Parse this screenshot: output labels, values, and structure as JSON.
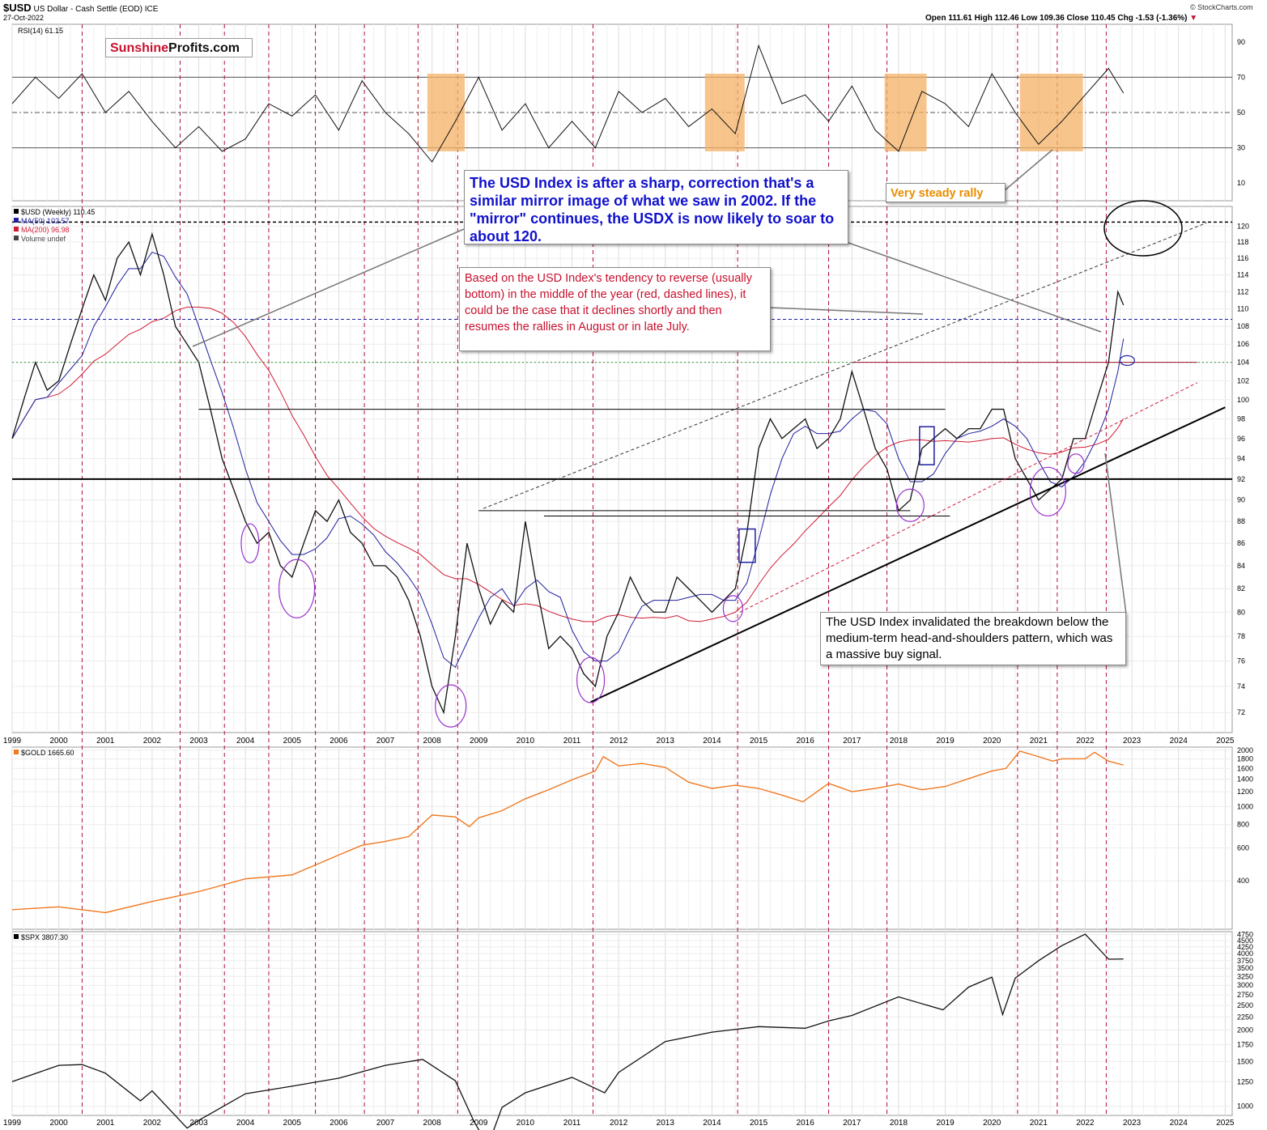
{
  "header": {
    "symbol": "$USD",
    "description": "US Dollar - Cash Settle (EOD)",
    "exchange": "ICE",
    "date": "27-Oct-2022",
    "ohlc": "Open 111.61  High 112.46  Low 109.36  Close 110.45  Chg -1.53 (-1.36%)",
    "chg_arrow": "▼",
    "watermark": "© StockCharts.com"
  },
  "logo": {
    "part1": "Sunshine",
    "part2": "Profits.com"
  },
  "annotations": {
    "mirror": "The USD Index is after a sharp, correction that's a similar mirror image of what we saw in 2002. If the \"mirror\" continues, the USDX is now likely to soar to about 120.",
    "seasonal": "Based on the USD Index's tendency to reverse (usually bottom) in the middle of the year (red, dashed lines), it could be the case that it declines shortly and then resumes the rallies in August or in late July.",
    "breakdown": "The USD Index invalidated the breakdown below the medium-term head-and-shoulders pattern, which was a massive buy signal.",
    "steady": "Very steady rally"
  },
  "colors": {
    "price": "#111111",
    "ma50": "#1f1fa0",
    "ma200": "#d01c35",
    "gold": "#f07820",
    "spx": "#111111",
    "seasonal_line": "#b0103a",
    "highlight": "#f4b266",
    "circle": "#9933cc"
  },
  "chart_data": [
    {
      "type": "line",
      "panel": "rsi",
      "label": "RSI(14) 61.15",
      "yticks": [
        10,
        30,
        50,
        70,
        90
      ],
      "ylim": [
        0,
        100
      ],
      "reference_lines": [
        30,
        50,
        70
      ],
      "x": [
        1999.0,
        1999.5,
        2000.0,
        2000.5,
        2001.0,
        2001.5,
        2002.0,
        2002.5,
        2003.0,
        2003.5,
        2004.0,
        2004.5,
        2005.0,
        2005.5,
        2006.0,
        2006.5,
        2007.0,
        2007.5,
        2008.0,
        2008.5,
        2009.0,
        2009.5,
        2010.0,
        2010.5,
        2011.0,
        2011.5,
        2012.0,
        2012.5,
        2013.0,
        2013.5,
        2014.0,
        2014.5,
        2015.0,
        2015.5,
        2016.0,
        2016.5,
        2017.0,
        2017.5,
        2018.0,
        2018.5,
        2019.0,
        2019.5,
        2020.0,
        2020.5,
        2021.0,
        2021.5,
        2022.0,
        2022.5,
        2022.82
      ],
      "y": [
        55,
        70,
        58,
        72,
        50,
        62,
        45,
        30,
        42,
        28,
        35,
        55,
        48,
        60,
        40,
        68,
        50,
        38,
        22,
        45,
        70,
        40,
        55,
        30,
        45,
        30,
        62,
        50,
        58,
        42,
        52,
        38,
        88,
        55,
        60,
        45,
        65,
        40,
        28,
        62,
        55,
        42,
        72,
        50,
        32,
        45,
        60,
        75,
        61
      ]
    },
    {
      "type": "line",
      "panel": "usd",
      "label": "$USD (Weekly) 110.45",
      "series": [
        {
          "name": "MA(50) 102.57"
        },
        {
          "name": "MA(200) 96.98"
        },
        {
          "name": "Volume undef"
        }
      ],
      "yticks": [
        72,
        74,
        76,
        78,
        80,
        82,
        84,
        86,
        88,
        90,
        92,
        94,
        96,
        98,
        100,
        102,
        104,
        106,
        108,
        110,
        112,
        114,
        116,
        118,
        120
      ],
      "ylim": [
        70.5,
        122.5
      ],
      "xticks": [
        "1999",
        "2000",
        "2001",
        "2002",
        "2003",
        "2004",
        "2005",
        "2006",
        "2007",
        "2008",
        "2009",
        "2010",
        "2011",
        "2012",
        "2013",
        "2014",
        "2015",
        "2016",
        "2017",
        "2018",
        "2019",
        "2020",
        "2021",
        "2022",
        "2023",
        "2024",
        "2025"
      ],
      "xlim": [
        1999.0,
        2025.15
      ],
      "seasonal_dashed_years": [
        2000.5,
        2002.6,
        2003.55,
        2004.5,
        2005.5,
        2006.55,
        2007.7,
        2008.55,
        2011.45,
        2014.55,
        2016.5,
        2017.75,
        2020.55,
        2021.4,
        2022.45
      ],
      "key_levels": [
        120.5,
        108.8,
        104.0,
        92.0
      ],
      "x": [
        1999.0,
        1999.25,
        1999.5,
        1999.75,
        2000.0,
        2000.25,
        2000.5,
        2000.75,
        2001.0,
        2001.25,
        2001.5,
        2001.75,
        2002.0,
        2002.25,
        2002.5,
        2002.75,
        2003.0,
        2003.25,
        2003.5,
        2003.75,
        2004.0,
        2004.25,
        2004.5,
        2004.75,
        2005.0,
        2005.25,
        2005.5,
        2005.75,
        2006.0,
        2006.25,
        2006.5,
        2006.75,
        2007.0,
        2007.25,
        2007.5,
        2007.75,
        2008.0,
        2008.25,
        2008.5,
        2008.75,
        2009.0,
        2009.25,
        2009.5,
        2009.75,
        2010.0,
        2010.25,
        2010.5,
        2010.75,
        2011.0,
        2011.25,
        2011.5,
        2011.75,
        2012.0,
        2012.25,
        2012.5,
        2012.75,
        2013.0,
        2013.25,
        2013.5,
        2013.75,
        2014.0,
        2014.25,
        2014.5,
        2014.75,
        2015.0,
        2015.25,
        2015.5,
        2015.75,
        2016.0,
        2016.25,
        2016.5,
        2016.75,
        2017.0,
        2017.25,
        2017.5,
        2017.75,
        2018.0,
        2018.25,
        2018.5,
        2018.75,
        2019.0,
        2019.25,
        2019.5,
        2019.75,
        2020.0,
        2020.25,
        2020.5,
        2020.75,
        2021.0,
        2021.25,
        2021.5,
        2021.75,
        2022.0,
        2022.25,
        2022.5,
        2022.7,
        2022.82
      ],
      "y": [
        96,
        100,
        104,
        101,
        102,
        106,
        110,
        114,
        111,
        116,
        118,
        114,
        119,
        114,
        108,
        106,
        104,
        99,
        94,
        91,
        88,
        86,
        87,
        84,
        83,
        86,
        89,
        88,
        90,
        87,
        86,
        84,
        84,
        83,
        81,
        78,
        74,
        72,
        78,
        86,
        82,
        79,
        81,
        80,
        88,
        82,
        77,
        78,
        77,
        75,
        74,
        78,
        80,
        83,
        81,
        80,
        80,
        83,
        82,
        81,
        80,
        81,
        82,
        87,
        95,
        98,
        96,
        97,
        98,
        95,
        96,
        98,
        103,
        99,
        95,
        93,
        89,
        90,
        95,
        96,
        97,
        96,
        97,
        97,
        99,
        99,
        94,
        92,
        90,
        91,
        92,
        96,
        96,
        100,
        104,
        112,
        110.45
      ]
    },
    {
      "type": "line",
      "panel": "gold",
      "label": "$GOLD 1665.60",
      "yticks": [
        400,
        600,
        800,
        1000,
        1200,
        1400,
        1600,
        1800,
        2000
      ],
      "ylim": [
        220,
        2080
      ],
      "x": [
        1999.0,
        2000.0,
        2001.0,
        2002.0,
        2003.0,
        2004.0,
        2005.0,
        2006.0,
        2006.5,
        2007.0,
        2007.5,
        2008.0,
        2008.5,
        2008.8,
        2009.0,
        2009.5,
        2010.0,
        2010.5,
        2011.0,
        2011.5,
        2011.67,
        2012.0,
        2012.5,
        2013.0,
        2013.5,
        2014.0,
        2014.5,
        2015.0,
        2015.5,
        2015.95,
        2016.5,
        2017.0,
        2017.5,
        2018.0,
        2018.5,
        2019.0,
        2019.5,
        2020.0,
        2020.3,
        2020.6,
        2021.0,
        2021.3,
        2021.5,
        2022.0,
        2022.2,
        2022.5,
        2022.82
      ],
      "y": [
        280,
        290,
        270,
        310,
        350,
        410,
        430,
        550,
        620,
        650,
        690,
        900,
        880,
        780,
        870,
        950,
        1100,
        1230,
        1390,
        1550,
        1850,
        1650,
        1700,
        1620,
        1350,
        1250,
        1300,
        1250,
        1150,
        1060,
        1330,
        1200,
        1250,
        1320,
        1230,
        1280,
        1410,
        1550,
        1600,
        1980,
        1850,
        1750,
        1800,
        1800,
        1950,
        1750,
        1665.6
      ]
    },
    {
      "type": "line",
      "panel": "spx",
      "label": "$SPX 3807.30",
      "yticks": [
        1000,
        1250,
        1500,
        1750,
        2000,
        2250,
        2500,
        2750,
        3000,
        3250,
        3500,
        3750,
        4000,
        4250,
        4500,
        4750
      ],
      "ylim": [
        920,
        4880
      ],
      "x": [
        1999.0,
        2000.0,
        2000.5,
        2001.0,
        2001.75,
        2002.0,
        2002.75,
        2003.0,
        2004.0,
        2005.0,
        2006.0,
        2007.0,
        2007.8,
        2008.5,
        2008.9,
        2009.2,
        2009.5,
        2010.0,
        2011.0,
        2011.7,
        2012.0,
        2013.0,
        2014.0,
        2015.0,
        2016.0,
        2016.5,
        2017.0,
        2018.0,
        2018.95,
        2019.5,
        2020.0,
        2020.23,
        2020.5,
        2021.0,
        2021.5,
        2022.0,
        2022.5,
        2022.82
      ],
      "y": [
        1250,
        1450,
        1460,
        1350,
        1050,
        1150,
        820,
        880,
        1120,
        1200,
        1290,
        1450,
        1530,
        1260,
        870,
        700,
        990,
        1130,
        1300,
        1130,
        1360,
        1800,
        1960,
        2060,
        2030,
        2170,
        2280,
        2700,
        2400,
        2950,
        3230,
        2300,
        3200,
        3750,
        4300,
        4770,
        3800,
        3807.3
      ]
    }
  ]
}
